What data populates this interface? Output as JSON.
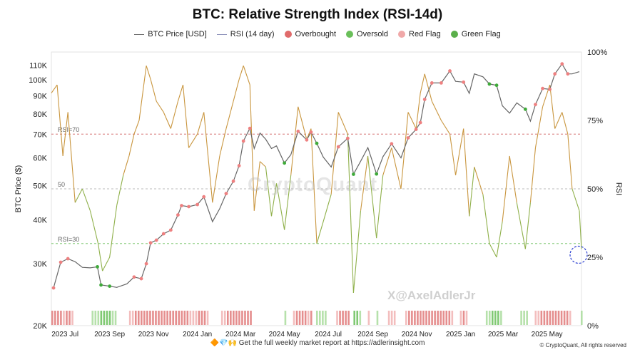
{
  "chart_data": {
    "type": "line",
    "title": "BTC: Relative Strength Index (RSI-14d)",
    "legend": [
      {
        "label": "BTC Price [USD]",
        "kind": "line",
        "color": "#666666"
      },
      {
        "label": "RSI (14 day)",
        "kind": "line",
        "color": "#8a8fb8"
      },
      {
        "label": "Overbought",
        "kind": "dot",
        "color": "#e06b6b"
      },
      {
        "label": "Oversold",
        "kind": "dot",
        "color": "#6abf5a"
      },
      {
        "label": "Red Flag",
        "kind": "dot",
        "color": "#f0a8a8"
      },
      {
        "label": "Green Flag",
        "kind": "dot",
        "color": "#5aaf4a"
      }
    ],
    "ylabel_left": "BTC Price ($)",
    "ylabel_right": "RSI",
    "left_axis": {
      "scale": "log",
      "range": [
        20000,
        120000
      ],
      "ticks": [
        20000,
        30000,
        40000,
        50000,
        60000,
        70000,
        80000,
        90000,
        100000,
        110000
      ],
      "tick_labels": [
        "20K",
        "30K",
        "40K",
        "50K",
        "60K",
        "70K",
        "80K",
        "90K",
        "100K",
        "110K"
      ]
    },
    "right_axis": {
      "range": [
        0,
        100
      ],
      "ticks": [
        0,
        25,
        50,
        75,
        100
      ],
      "tick_labels": [
        "0%",
        "25%",
        "50%",
        "75%",
        "100%"
      ]
    },
    "x_range": [
      "2023-06-12",
      "2025-06-18"
    ],
    "x_ticks": [
      "2023-07-01",
      "2023-09-01",
      "2023-11-01",
      "2024-01-01",
      "2024-03-01",
      "2024-05-01",
      "2024-07-01",
      "2024-09-01",
      "2024-11-01",
      "2025-01-01",
      "2025-03-01",
      "2025-05-01"
    ],
    "x_tick_labels": [
      "2023 Jul",
      "2023 Sep",
      "2023 Nov",
      "2024 Jan",
      "2024 Mar",
      "2024 May",
      "2024 Jul",
      "2024 Sep",
      "2024 Nov",
      "2025 Jan",
      "2025 Mar",
      "2025 May"
    ],
    "reference_lines": [
      {
        "label": "RSI=70",
        "value": 70,
        "color": "#d06060"
      },
      {
        "label": "50",
        "value": 50,
        "color": "#bbbbbb"
      },
      {
        "label": "RSI=30",
        "value": 30,
        "color": "#6abf5a"
      }
    ],
    "price_series": {
      "name": "BTC Price [USD]",
      "x": [
        "2023-06-15",
        "2023-06-25",
        "2023-07-05",
        "2023-07-15",
        "2023-07-25",
        "2023-08-05",
        "2023-08-15",
        "2023-08-20",
        "2023-09-01",
        "2023-09-11",
        "2023-09-25",
        "2023-10-05",
        "2023-10-15",
        "2023-10-22",
        "2023-10-28",
        "2023-11-05",
        "2023-11-15",
        "2023-11-25",
        "2023-12-05",
        "2023-12-10",
        "2023-12-20",
        "2024-01-01",
        "2024-01-10",
        "2024-01-22",
        "2024-02-01",
        "2024-02-10",
        "2024-02-20",
        "2024-02-28",
        "2024-03-05",
        "2024-03-14",
        "2024-03-20",
        "2024-03-28",
        "2024-04-05",
        "2024-04-13",
        "2024-04-20",
        "2024-05-01",
        "2024-05-10",
        "2024-05-20",
        "2024-06-01",
        "2024-06-07",
        "2024-06-15",
        "2024-06-24",
        "2024-07-05",
        "2024-07-15",
        "2024-07-28",
        "2024-08-05",
        "2024-08-15",
        "2024-08-25",
        "2024-09-06",
        "2024-09-15",
        "2024-09-27",
        "2024-10-10",
        "2024-10-20",
        "2024-10-31",
        "2024-11-06",
        "2024-11-12",
        "2024-11-22",
        "2024-12-05",
        "2024-12-17",
        "2024-12-25",
        "2025-01-05",
        "2025-01-13",
        "2025-01-20",
        "2025-02-01",
        "2025-02-10",
        "2025-02-20",
        "2025-02-28",
        "2025-03-10",
        "2025-03-20",
        "2025-04-01",
        "2025-04-08",
        "2025-04-15",
        "2025-04-25",
        "2025-05-05",
        "2025-05-12",
        "2025-05-22",
        "2025-05-30",
        "2025-06-05",
        "2025-06-15"
      ],
      "y": [
        25600,
        30300,
        31000,
        30400,
        29300,
        29200,
        29400,
        26100,
        25900,
        25700,
        26300,
        27500,
        27200,
        30000,
        34400,
        35000,
        36500,
        37400,
        41300,
        43900,
        43600,
        44200,
        46500,
        39500,
        43000,
        47500,
        51500,
        57000,
        67000,
        72800,
        63800,
        70600,
        67800,
        63800,
        64900,
        58000,
        61300,
        71400,
        67500,
        71000,
        66000,
        60300,
        56500,
        64500,
        68200,
        53900,
        58700,
        64200,
        54000,
        60500,
        65800,
        60000,
        68400,
        72300,
        75600,
        88000,
        98000,
        98000,
        106000,
        99000,
        98500,
        91500,
        104000,
        102000,
        97300,
        96500,
        84400,
        80400,
        86000,
        82500,
        76300,
        85100,
        94500,
        94000,
        104000,
        111000,
        104000,
        104000,
        105500
      ]
    },
    "rsi_series": {
      "name": "RSI (14 day)",
      "x": [
        "2023-06-12",
        "2023-06-20",
        "2023-06-28",
        "2023-07-05",
        "2023-07-15",
        "2023-07-25",
        "2023-08-05",
        "2023-08-16",
        "2023-08-22",
        "2023-09-01",
        "2023-09-11",
        "2023-09-20",
        "2023-09-28",
        "2023-10-05",
        "2023-10-12",
        "2023-10-22",
        "2023-10-28",
        "2023-11-05",
        "2023-11-15",
        "2023-11-25",
        "2023-12-05",
        "2023-12-12",
        "2023-12-20",
        "2024-01-01",
        "2024-01-10",
        "2024-01-22",
        "2024-02-01",
        "2024-02-10",
        "2024-02-20",
        "2024-02-28",
        "2024-03-05",
        "2024-03-14",
        "2024-03-20",
        "2024-03-28",
        "2024-04-05",
        "2024-04-13",
        "2024-04-20",
        "2024-05-01",
        "2024-05-10",
        "2024-05-20",
        "2024-06-01",
        "2024-06-07",
        "2024-06-15",
        "2024-06-24",
        "2024-07-05",
        "2024-07-15",
        "2024-07-28",
        "2024-08-05",
        "2024-08-15",
        "2024-08-25",
        "2024-09-06",
        "2024-09-15",
        "2024-09-27",
        "2024-10-10",
        "2024-10-20",
        "2024-10-31",
        "2024-11-06",
        "2024-11-12",
        "2024-11-22",
        "2024-12-05",
        "2024-12-17",
        "2024-12-25",
        "2025-01-05",
        "2025-01-13",
        "2025-01-20",
        "2025-02-01",
        "2025-02-10",
        "2025-02-20",
        "2025-02-28",
        "2025-03-10",
        "2025-03-20",
        "2025-04-01",
        "2025-04-08",
        "2025-04-15",
        "2025-04-25",
        "2025-05-05",
        "2025-05-12",
        "2025-05-22",
        "2025-05-30",
        "2025-06-05",
        "2025-06-15",
        "2025-06-18"
      ],
      "y": [
        85,
        88,
        62,
        78,
        45,
        50,
        42,
        30,
        20,
        25,
        44,
        55,
        62,
        70,
        75,
        95,
        90,
        82,
        78,
        72,
        82,
        88,
        65,
        70,
        78,
        45,
        62,
        72,
        82,
        90,
        95,
        88,
        42,
        60,
        58,
        40,
        52,
        35,
        55,
        80,
        68,
        72,
        30,
        38,
        48,
        78,
        70,
        12,
        42,
        62,
        32,
        55,
        65,
        50,
        78,
        72,
        85,
        92,
        82,
        75,
        70,
        55,
        72,
        40,
        58,
        48,
        30,
        25,
        38,
        62,
        45,
        28,
        45,
        65,
        80,
        88,
        72,
        78,
        70,
        50,
        42,
        28
      ]
    }
  },
  "footer": {
    "emojis": "🔶💎🙌",
    "text": "Get the full weekly market report at https://adlerinsight.com",
    "copyright": "© CryptoQuant, All rights reserved",
    "watermark": "CryptoQuant",
    "handle": "X@AxelAdlerJr"
  }
}
